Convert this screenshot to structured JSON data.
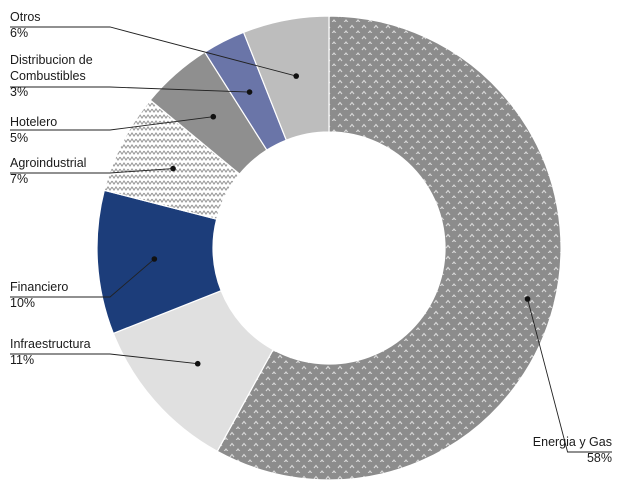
{
  "chart_data": {
    "type": "donut",
    "title": "",
    "unit": "%",
    "legend": "none",
    "slices": [
      {
        "name": "Energia y Gas",
        "label_line1": "Energia y Gas",
        "label_line2": "",
        "value": 58,
        "display": "58%",
        "color": "#8c8c8c",
        "pattern": "chevron-dots"
      },
      {
        "name": "Infraestructura",
        "label_line1": "Infraestructura",
        "label_line2": "",
        "value": 11,
        "display": "11%",
        "color": "#e0e0e0",
        "pattern": "solid"
      },
      {
        "name": "Financiero",
        "label_line1": "Financiero",
        "label_line2": "",
        "value": 10,
        "display": "10%",
        "color": "#1c3d7a",
        "pattern": "solid"
      },
      {
        "name": "Agroindustrial",
        "label_line1": "Agroindustrial",
        "label_line2": "",
        "value": 7,
        "display": "7%",
        "color": "#ffffff",
        "pattern": "zigzag"
      },
      {
        "name": "Hotelero",
        "label_line1": "Hotelero",
        "label_line2": "",
        "value": 5,
        "display": "5%",
        "color": "#8f8f8f",
        "pattern": "solid"
      },
      {
        "name": "Distribucion de Combustibles",
        "label_line1": "Distribucion de",
        "label_line2": "Combustibles",
        "value": 3,
        "display": "3%",
        "color": "#6a75a8",
        "pattern": "solid"
      },
      {
        "name": "Otros",
        "label_line1": "Otros",
        "label_line2": "",
        "value": 6,
        "display": "6%",
        "color": "#bdbdbd",
        "pattern": "solid"
      }
    ]
  }
}
